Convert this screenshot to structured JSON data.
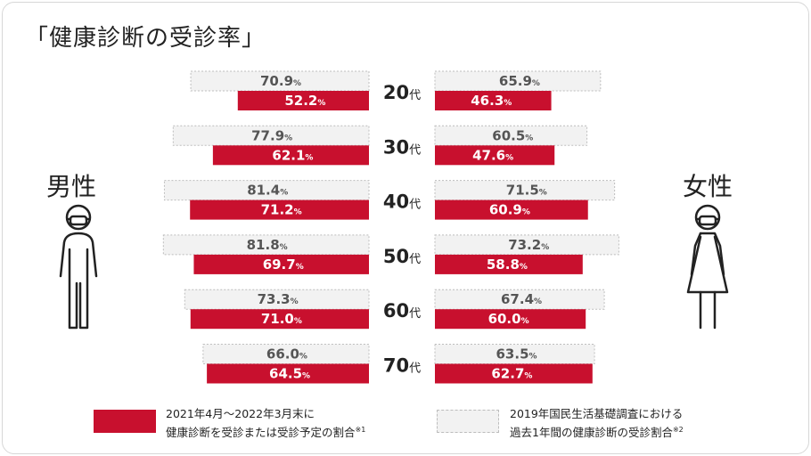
{
  "title": "「健康診断の受診率」",
  "labels": {
    "male": "男性",
    "female": "女性"
  },
  "legend": {
    "red": {
      "line1": "2021年4月〜2022年3月末に",
      "line2": "健康診断を受診または受診予定の割合",
      "note": "※1"
    },
    "gray": {
      "line1": "2019年国民生活基礎調査における",
      "line2": "過去1年間の健康診断の受診割合",
      "note": "※2"
    }
  },
  "colors": {
    "accent": "#c8102e",
    "baseline_fill": "#f2f2f2",
    "baseline_text": "#555555",
    "text": "#222222"
  },
  "chart_data": {
    "type": "bar",
    "layout": "population-pyramid",
    "unit": "%",
    "age_suffix": "代",
    "categories": [
      "20",
      "30",
      "40",
      "50",
      "60",
      "70"
    ],
    "male": {
      "survey_2019": [
        70.9,
        77.9,
        81.4,
        81.8,
        73.3,
        66.0
      ],
      "rate_2021": [
        52.2,
        62.1,
        71.2,
        69.7,
        71.0,
        64.5
      ]
    },
    "female": {
      "survey_2019": [
        65.9,
        60.5,
        71.5,
        73.2,
        67.4,
        63.5
      ],
      "rate_2021": [
        46.3,
        47.6,
        60.9,
        58.8,
        60.0,
        62.7
      ]
    }
  }
}
